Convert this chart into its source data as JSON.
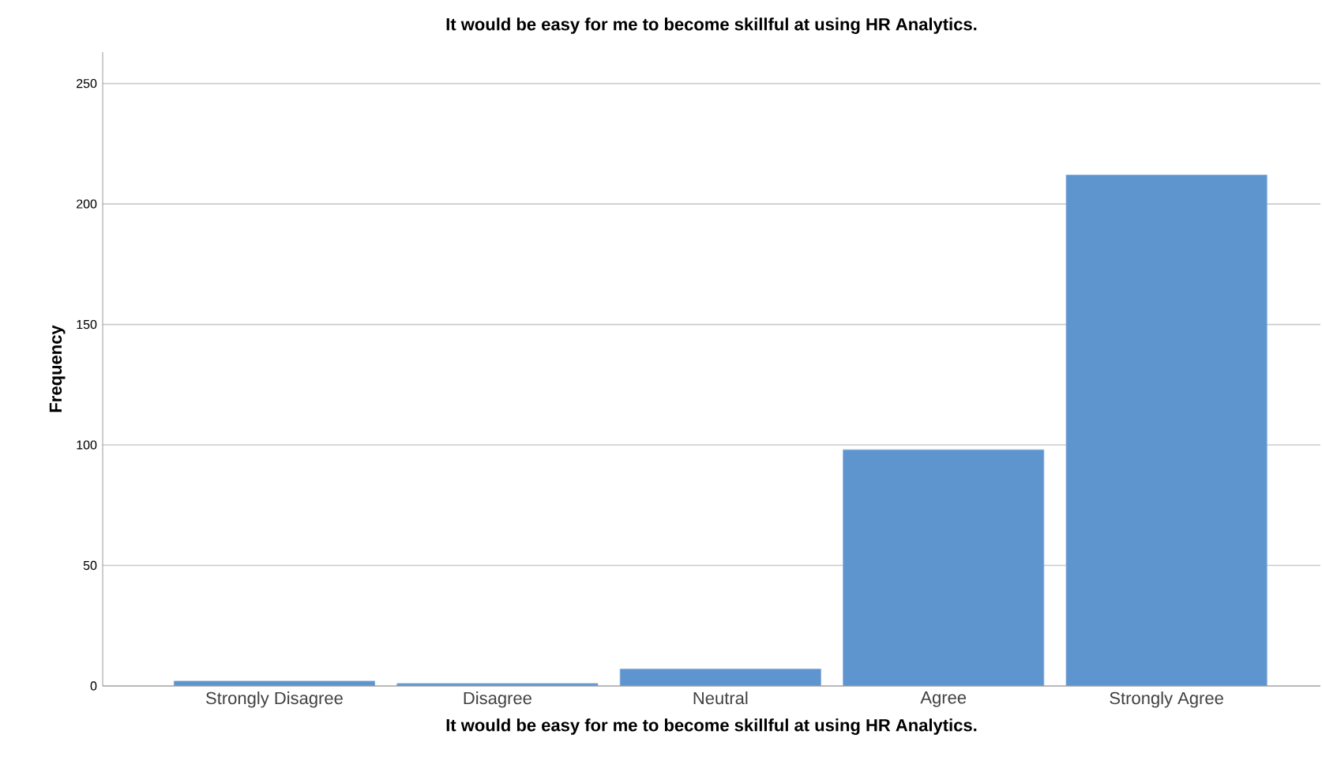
{
  "chart_data": {
    "type": "bar",
    "title": "It would be easy for me to become skillful at using HR Analytics.",
    "xlabel": "It would be easy for me to become skillful at using HR Analytics.",
    "ylabel": "Frequency",
    "categories": [
      "Strongly Disagree",
      "Disagree",
      "Neutral",
      "Agree",
      "Strongly Agree"
    ],
    "values": [
      2,
      1,
      7,
      98,
      212
    ],
    "color": "#5f95cf",
    "ylim": [
      0,
      263
    ],
    "yticks": [
      0,
      50,
      100,
      150,
      200,
      250
    ],
    "grid": "y"
  }
}
